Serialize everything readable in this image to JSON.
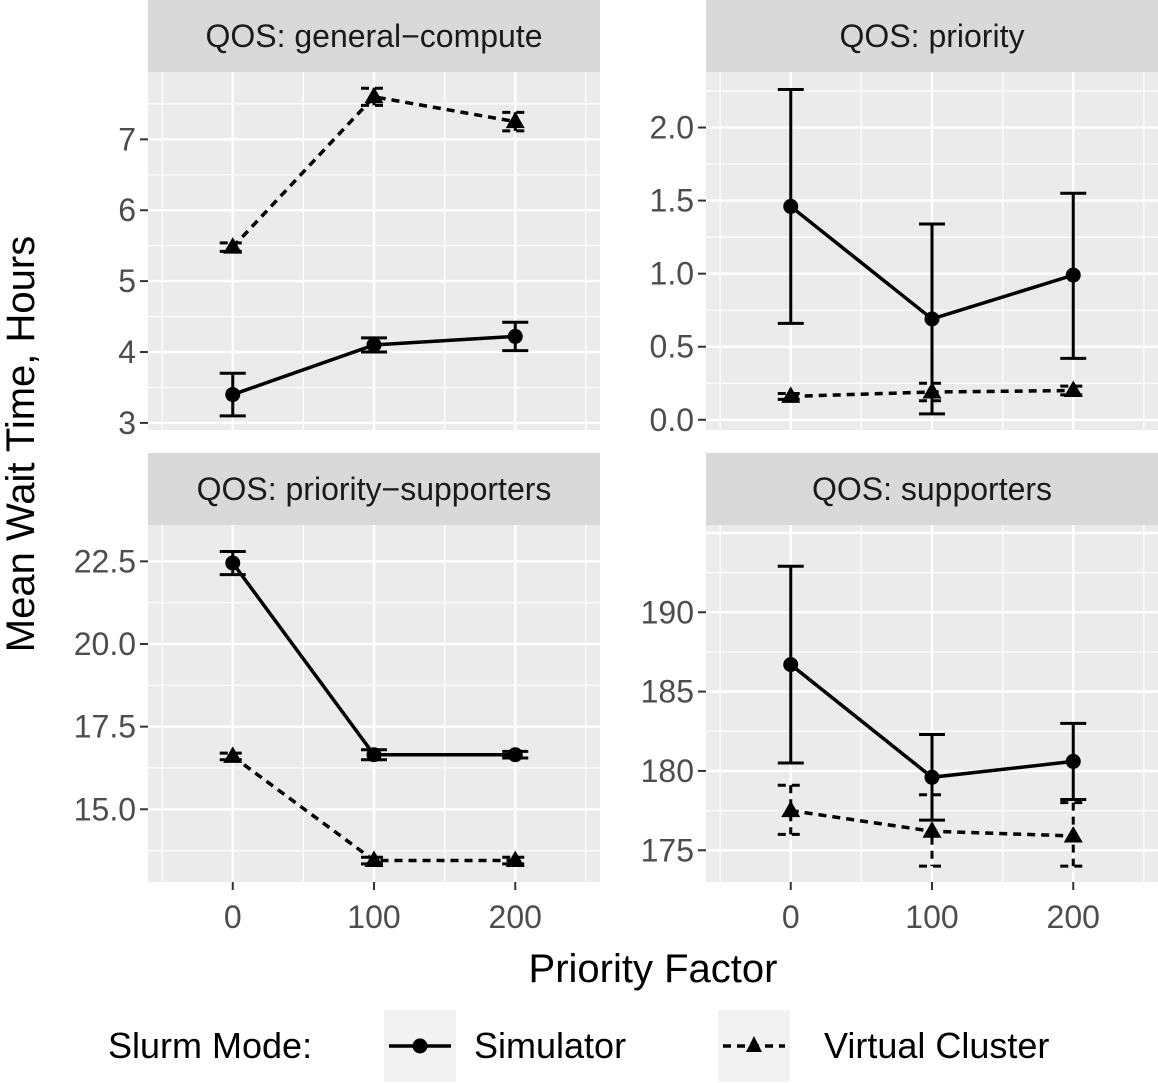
{
  "chart_data": [
    {
      "type": "line",
      "panel": "QOS: general−compute",
      "x": [
        0,
        100,
        200
      ],
      "series": [
        {
          "name": "Simulator",
          "y": [
            3.4,
            4.1,
            4.22
          ],
          "err_low": [
            3.1,
            4.0,
            4.02
          ],
          "err_high": [
            3.7,
            4.2,
            4.42
          ]
        },
        {
          "name": "Virtual Cluster",
          "y": [
            5.48,
            7.6,
            7.25
          ],
          "err_low": [
            5.42,
            7.48,
            7.12
          ],
          "err_high": [
            5.54,
            7.72,
            7.38
          ]
        }
      ],
      "xlim": [
        -60,
        260
      ],
      "ylim": [
        2.9,
        7.95
      ],
      "xticks": [
        "0",
        "100",
        "200"
      ],
      "yticks": [
        "3",
        "4",
        "5",
        "6",
        "7"
      ]
    },
    {
      "type": "line",
      "panel": "QOS: priority",
      "x": [
        0,
        100,
        200
      ],
      "series": [
        {
          "name": "Simulator",
          "y": [
            1.46,
            0.69,
            0.99
          ],
          "err_low": [
            0.66,
            0.04,
            0.42
          ],
          "err_high": [
            2.26,
            1.34,
            1.55
          ]
        },
        {
          "name": "Virtual Cluster",
          "y": [
            0.16,
            0.19,
            0.2
          ],
          "err_low": [
            0.14,
            0.13,
            0.17
          ],
          "err_high": [
            0.18,
            0.25,
            0.23
          ]
        }
      ],
      "xlim": [
        -60,
        260
      ],
      "ylim": [
        -0.07,
        2.38
      ],
      "xticks": [
        "0",
        "100",
        "200"
      ],
      "yticks": [
        "0.0",
        "0.5",
        "1.0",
        "1.5",
        "2.0"
      ]
    },
    {
      "type": "line",
      "panel": "QOS: priority−supporters",
      "x": [
        0,
        100,
        200
      ],
      "series": [
        {
          "name": "Simulator",
          "y": [
            22.45,
            16.65,
            16.65
          ],
          "err_low": [
            22.1,
            16.5,
            16.55
          ],
          "err_high": [
            22.8,
            16.8,
            16.75
          ]
        },
        {
          "name": "Virtual Cluster",
          "y": [
            16.6,
            13.45,
            13.45
          ],
          "err_low": [
            16.5,
            13.35,
            13.35
          ],
          "err_high": [
            16.7,
            13.55,
            13.55
          ]
        }
      ],
      "xlim": [
        -60,
        260
      ],
      "ylim": [
        12.8,
        23.6
      ],
      "xticks": [
        "0",
        "100",
        "200"
      ],
      "yticks": [
        "15.0",
        "17.5",
        "20.0",
        "22.5"
      ]
    },
    {
      "type": "line",
      "panel": "QOS: supporters",
      "x": [
        0,
        100,
        200
      ],
      "series": [
        {
          "name": "Simulator",
          "y": [
            186.7,
            179.6,
            180.6
          ],
          "err_low": [
            180.5,
            176.9,
            178.2
          ],
          "err_high": [
            192.9,
            182.3,
            183.0
          ]
        },
        {
          "name": "Virtual Cluster",
          "y": [
            177.5,
            176.2,
            175.9
          ],
          "err_low": [
            176.0,
            174.0,
            174.0
          ],
          "err_high": [
            179.1,
            178.5,
            178.0
          ]
        }
      ],
      "xlim": [
        -60,
        260
      ],
      "ylim": [
        173.0,
        195.5
      ],
      "xticks": [
        "0",
        "100",
        "200"
      ],
      "yticks": [
        "175",
        "180",
        "185",
        "190"
      ]
    }
  ],
  "axes": {
    "xlabel": "Priority Factor",
    "ylabel": "Mean Wait Time, Hours"
  },
  "legend": {
    "title": "Slurm Mode:",
    "entries": [
      "Simulator",
      "Virtual Cluster"
    ],
    "position": "bottom"
  },
  "style": {
    "panel_bg": "#ebebeb",
    "strip_bg": "#d9d9d9",
    "grid_color": "#ffffff",
    "line_color": "#000000",
    "tick_color": "#333333",
    "text_color": "#4d4d4d"
  }
}
